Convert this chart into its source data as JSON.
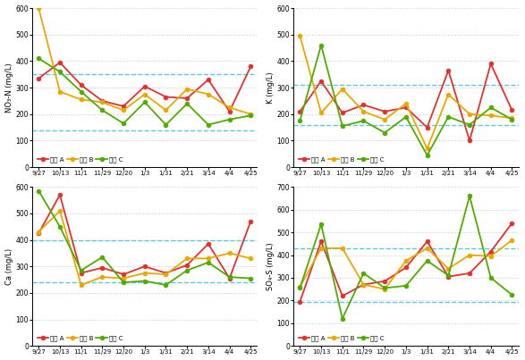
{
  "x_labels": [
    "9/27",
    "10/13",
    "11/1",
    "11/29",
    "12/20",
    "1/3",
    "1/31",
    "2/21",
    "3/14",
    "4/4",
    "4/25"
  ],
  "charts": [
    {
      "ylabel": "NO₃-N (mg/L)",
      "ylim": [
        0,
        600
      ],
      "yticks": [
        0,
        100,
        200,
        300,
        400,
        500,
        600
      ],
      "hlines": [
        140,
        350
      ],
      "series": {
        "농장 A": [
          335,
          395,
          310,
          250,
          230,
          305,
          265,
          260,
          330,
          210,
          380
        ],
        "농장 B": [
          600,
          285,
          255,
          245,
          215,
          275,
          215,
          295,
          275,
          225,
          200
        ],
        "농장 C": [
          410,
          360,
          285,
          215,
          165,
          245,
          160,
          240,
          160,
          180,
          195
        ]
      }
    },
    {
      "ylabel": "K (mg/L)",
      "ylim": [
        0,
        600
      ],
      "yticks": [
        0,
        100,
        200,
        300,
        400,
        500,
        600
      ],
      "hlines": [
        160,
        310
      ],
      "series": {
        "농장 A": [
          210,
          325,
          205,
          235,
          210,
          225,
          150,
          365,
          100,
          390,
          215
        ],
        "농장 B": [
          495,
          205,
          295,
          210,
          180,
          240,
          70,
          275,
          200,
          195,
          185
        ],
        "농장 C": [
          175,
          460,
          155,
          175,
          130,
          190,
          45,
          190,
          160,
          225,
          180
        ]
      }
    },
    {
      "ylabel": "Ca (mg/L)",
      "ylim": [
        0,
        600
      ],
      "yticks": [
        0,
        100,
        200,
        300,
        400,
        500,
        600
      ],
      "hlines": [
        240,
        400
      ],
      "series": {
        "농장 A": [
          425,
          570,
          275,
          295,
          270,
          300,
          275,
          305,
          385,
          255,
          470
        ],
        "농장 B": [
          430,
          510,
          230,
          260,
          255,
          275,
          270,
          330,
          330,
          350,
          330
        ],
        "농장 C": [
          585,
          450,
          285,
          335,
          240,
          245,
          230,
          285,
          315,
          260,
          255
        ]
      }
    },
    {
      "ylabel": "SO₄-S (mg/L)",
      "ylim": [
        0,
        700
      ],
      "yticks": [
        0,
        100,
        200,
        300,
        400,
        500,
        600,
        700
      ],
      "hlines": [
        195,
        430
      ],
      "series": {
        "농장 A": [
          195,
          460,
          220,
          270,
          285,
          345,
          460,
          305,
          320,
          415,
          540
        ],
        "농장 B": [
          260,
          430,
          430,
          270,
          250,
          375,
          430,
          340,
          400,
          395,
          465
        ],
        "농장 C": [
          255,
          535,
          120,
          320,
          255,
          265,
          375,
          310,
          660,
          300,
          225
        ]
      }
    }
  ],
  "colors": {
    "농장 A": "#e03030",
    "농장 B": "#e8a800",
    "농장 C": "#50aa00"
  },
  "legend_keys": [
    "농장 A",
    "농장 B",
    "농장 C"
  ],
  "legend_display": [
    "농장 A",
    "농장 B",
    "농장 C"
  ],
  "hline_color": "#5bc8e0",
  "grid_color": "#c8c8c8",
  "marker": "o",
  "marker_size": 3.5,
  "line_width": 1.3
}
